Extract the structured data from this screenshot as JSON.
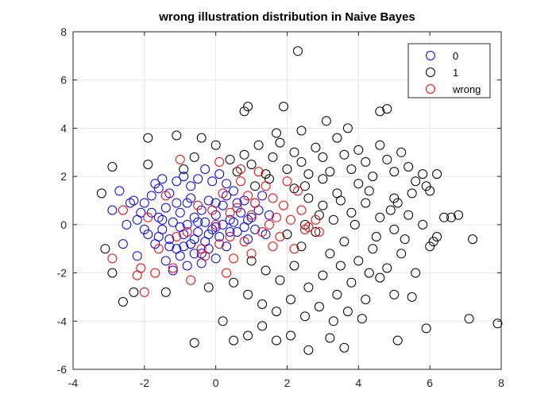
{
  "chart_data": {
    "type": "scatter",
    "title": "wrong illustration distribution in Naive Bayes",
    "xlabel": "",
    "ylabel": "",
    "xlim": [
      -4,
      8
    ],
    "ylim": [
      -6,
      8
    ],
    "xticks": [
      "-4",
      "-2",
      "0",
      "2",
      "4",
      "6",
      "8"
    ],
    "yticks": [
      "-6",
      "-4",
      "-2",
      "0",
      "2",
      "4",
      "6",
      "8"
    ],
    "grid": true,
    "legend_position": "top-right",
    "marker": "circle-open",
    "series": [
      {
        "name": "0",
        "color": "#0000ff",
        "points": [
          [
            -2.7,
            1.4
          ],
          [
            -2.3,
            1.0
          ],
          [
            -2.2,
            0.2
          ],
          [
            -2.0,
            0.9
          ],
          [
            -1.8,
            1.2
          ],
          [
            -1.6,
            1.5
          ],
          [
            -1.5,
            1.9
          ],
          [
            -1.3,
            1.3
          ],
          [
            -1.1,
            1.8
          ],
          [
            -0.9,
            2.0
          ],
          [
            -0.7,
            1.6
          ],
          [
            -0.5,
            1.9
          ],
          [
            -0.3,
            2.3
          ],
          [
            -0.1,
            1.8
          ],
          [
            0.1,
            2.1
          ],
          [
            0.3,
            1.7
          ],
          [
            -1.8,
            0.5
          ],
          [
            -1.6,
            0.3
          ],
          [
            -1.4,
            0.7
          ],
          [
            -1.2,
            0.1
          ],
          [
            -1.0,
            0.5
          ],
          [
            -0.8,
            0.9
          ],
          [
            -0.6,
            0.3
          ],
          [
            -0.4,
            0.6
          ],
          [
            -0.2,
            1.0
          ],
          [
            0.0,
            0.4
          ],
          [
            0.2,
            0.8
          ],
          [
            0.4,
            0.2
          ],
          [
            -1.9,
            -0.4
          ],
          [
            -1.7,
            -0.8
          ],
          [
            -1.5,
            -0.2
          ],
          [
            -1.3,
            -0.6
          ],
          [
            -1.1,
            -1.0
          ],
          [
            -0.9,
            -0.4
          ],
          [
            -0.7,
            -0.8
          ],
          [
            -0.5,
            -0.3
          ],
          [
            -0.3,
            -0.7
          ],
          [
            -0.1,
            -0.2
          ],
          [
            0.1,
            -0.5
          ],
          [
            0.3,
            -0.9
          ],
          [
            -1.4,
            -1.5
          ],
          [
            -1.2,
            -1.9
          ],
          [
            -1.0,
            -1.3
          ],
          [
            -0.8,
            -1.7
          ],
          [
            -0.6,
            -1.2
          ],
          [
            -0.4,
            -1.6
          ],
          [
            -0.2,
            -1.0
          ],
          [
            0.0,
            -1.4
          ],
          [
            -2.6,
            -0.8
          ],
          [
            -2.2,
            -1.3
          ],
          [
            -2.9,
            0.6
          ],
          [
            -2.5,
            0.0
          ],
          [
            -2.1,
            0.5
          ],
          [
            -1.6,
            -0.5
          ],
          [
            -1.0,
            -0.1
          ],
          [
            -0.5,
            0.1
          ],
          [
            0.0,
            -0.1
          ],
          [
            0.5,
            0.1
          ],
          [
            0.6,
            -0.3
          ],
          [
            0.7,
            0.5
          ],
          [
            0.8,
            1.0
          ],
          [
            0.9,
            -0.6
          ],
          [
            1.0,
            0.3
          ],
          [
            1.1,
            -0.2
          ],
          [
            1.2,
            0.6
          ],
          [
            1.3,
            1.2
          ],
          [
            1.4,
            -0.4
          ],
          [
            0.5,
            1.4
          ],
          [
            -0.7,
            1.1
          ],
          [
            -1.7,
            1.7
          ],
          [
            -0.2,
            -0.4
          ],
          [
            0.4,
            -0.3
          ],
          [
            -0.9,
            -0.9
          ],
          [
            0.2,
            0.0
          ],
          [
            -0.4,
            -1.2
          ],
          [
            0.6,
            0.9
          ],
          [
            -1.3,
            -0.9
          ],
          [
            -0.6,
            -0.6
          ],
          [
            0.9,
            0.2
          ],
          [
            -2.0,
            -0.2
          ],
          [
            -1.5,
            0.2
          ],
          [
            0.3,
            1.2
          ],
          [
            -0.8,
            0.0
          ],
          [
            1.1,
            0.9
          ],
          [
            0.0,
            0.9
          ],
          [
            -0.3,
            0.1
          ],
          [
            -1.1,
            0.9
          ],
          [
            0.8,
            -0.1
          ],
          [
            -2.4,
            0.9
          ],
          [
            1.5,
            0.4
          ]
        ]
      },
      {
        "name": "1",
        "color": "#000000",
        "points": [
          [
            -3.2,
            1.3
          ],
          [
            -2.9,
            2.4
          ],
          [
            -3.1,
            -1.0
          ],
          [
            -2.9,
            -2.0
          ],
          [
            -2.6,
            -3.2
          ],
          [
            -2.3,
            -2.8
          ],
          [
            -1.9,
            3.6
          ],
          [
            -1.9,
            2.5
          ],
          [
            -1.4,
            -2.8
          ],
          [
            -1.1,
            3.7
          ],
          [
            -0.9,
            2.3
          ],
          [
            -0.6,
            2.8
          ],
          [
            -0.4,
            3.6
          ],
          [
            -0.2,
            -2.6
          ],
          [
            0.0,
            3.3
          ],
          [
            0.4,
            2.7
          ],
          [
            0.6,
            2.2
          ],
          [
            0.8,
            2.9
          ],
          [
            1.0,
            2.5
          ],
          [
            1.2,
            3.3
          ],
          [
            1.4,
            2.1
          ],
          [
            1.6,
            2.8
          ],
          [
            1.8,
            3.4
          ],
          [
            2.0,
            2.3
          ],
          [
            2.2,
            3.0
          ],
          [
            2.4,
            2.6
          ],
          [
            2.6,
            2.1
          ],
          [
            2.8,
            3.2
          ],
          [
            3.0,
            2.8
          ],
          [
            3.2,
            2.2
          ],
          [
            3.4,
            3.6
          ],
          [
            3.6,
            2.9
          ],
          [
            3.8,
            2.3
          ],
          [
            4.0,
            3.1
          ],
          [
            4.2,
            2.6
          ],
          [
            4.4,
            2.0
          ],
          [
            4.6,
            3.3
          ],
          [
            4.8,
            2.7
          ],
          [
            5.0,
            2.2
          ],
          [
            5.2,
            3.0
          ],
          [
            5.4,
            2.4
          ],
          [
            5.6,
            1.8
          ],
          [
            5.8,
            2.1
          ],
          [
            6.2,
            2.1
          ],
          [
            2.3,
            7.2
          ],
          [
            0.9,
            4.9
          ],
          [
            0.8,
            4.7
          ],
          [
            1.9,
            4.9
          ],
          [
            3.1,
            4.3
          ],
          [
            4.6,
            4.7
          ],
          [
            4.8,
            4.8
          ],
          [
            2.4,
            3.9
          ],
          [
            3.7,
            4.0
          ],
          [
            1.7,
            3.8
          ],
          [
            2.2,
            1.5
          ],
          [
            2.6,
            1.1
          ],
          [
            3.0,
            0.8
          ],
          [
            3.4,
            1.3
          ],
          [
            3.8,
            0.5
          ],
          [
            4.2,
            0.9
          ],
          [
            4.6,
            0.3
          ],
          [
            5.0,
            -0.2
          ],
          [
            5.4,
            0.4
          ],
          [
            5.8,
            0.0
          ],
          [
            6.2,
            -0.5
          ],
          [
            6.6,
            0.3
          ],
          [
            7.2,
            -0.6
          ],
          [
            2.0,
            -0.4
          ],
          [
            2.4,
            -0.9
          ],
          [
            2.8,
            -0.3
          ],
          [
            3.2,
            -1.2
          ],
          [
            3.6,
            -0.7
          ],
          [
            4.0,
            -1.5
          ],
          [
            4.4,
            -1.0
          ],
          [
            4.8,
            -1.8
          ],
          [
            5.2,
            -1.2
          ],
          [
            5.6,
            -2.0
          ],
          [
            6.0,
            -0.9
          ],
          [
            1.0,
            -1.5
          ],
          [
            1.4,
            -1.9
          ],
          [
            1.8,
            -2.3
          ],
          [
            2.2,
            -1.7
          ],
          [
            2.6,
            -2.6
          ],
          [
            3.0,
            -2.1
          ],
          [
            3.4,
            -2.9
          ],
          [
            3.8,
            -2.4
          ],
          [
            4.2,
            -3.1
          ],
          [
            4.6,
            -2.2
          ],
          [
            5.0,
            -2.9
          ],
          [
            5.5,
            -3.0
          ],
          [
            0.5,
            -2.4
          ],
          [
            0.9,
            -2.9
          ],
          [
            1.3,
            -3.3
          ],
          [
            1.7,
            -3.6
          ],
          [
            2.1,
            -3.1
          ],
          [
            2.5,
            -3.8
          ],
          [
            2.9,
            -3.4
          ],
          [
            3.3,
            -4.0
          ],
          [
            3.7,
            -3.6
          ],
          [
            4.1,
            -3.9
          ],
          [
            0.2,
            -4.0
          ],
          [
            -0.6,
            -4.9
          ],
          [
            0.5,
            -4.8
          ],
          [
            0.9,
            -4.6
          ],
          [
            1.3,
            -4.2
          ],
          [
            1.7,
            -4.8
          ],
          [
            2.1,
            -4.6
          ],
          [
            2.6,
            -5.2
          ],
          [
            3.2,
            -4.7
          ],
          [
            3.6,
            -5.1
          ],
          [
            5.1,
            -4.8
          ],
          [
            5.9,
            -4.3
          ],
          [
            7.1,
            -3.9
          ],
          [
            7.9,
            -4.1
          ],
          [
            6.8,
            0.4
          ],
          [
            6.4,
            0.3
          ],
          [
            5.9,
            1.6
          ],
          [
            6.0,
            1.4
          ],
          [
            5.5,
            1.3
          ],
          [
            5.0,
            1.1
          ],
          [
            4.0,
            1.7
          ],
          [
            3.5,
            1.0
          ],
          [
            3.0,
            1.9
          ],
          [
            2.5,
            1.6
          ],
          [
            1.5,
            1.9
          ],
          [
            1.1,
            1.6
          ],
          [
            4.3,
            1.4
          ],
          [
            4.9,
            0.6
          ],
          [
            3.9,
            0.0
          ],
          [
            3.3,
            0.2
          ],
          [
            2.9,
            0.4
          ],
          [
            2.5,
            0.0
          ],
          [
            4.5,
            -0.5
          ],
          [
            5.1,
            0.9
          ],
          [
            6.1,
            -0.7
          ],
          [
            5.3,
            -0.6
          ],
          [
            3.5,
            -1.7
          ],
          [
            4.3,
            -2.0
          ]
        ]
      },
      {
        "name": "wrong",
        "color": "#ff0000",
        "points": [
          [
            -2.9,
            -1.4
          ],
          [
            -2.6,
            0.6
          ],
          [
            -2.2,
            -2.1
          ],
          [
            -2.1,
            -1.8
          ],
          [
            -2.0,
            -2.8
          ],
          [
            -1.9,
            0.3
          ],
          [
            -1.6,
            -1.0
          ],
          [
            -1.4,
            1.2
          ],
          [
            -1.2,
            -1.8
          ],
          [
            -1.0,
            2.7
          ],
          [
            -0.8,
            -0.3
          ],
          [
            -0.7,
            -2.3
          ],
          [
            -0.5,
            0.8
          ],
          [
            -0.3,
            -1.3
          ],
          [
            -0.1,
            0.6
          ],
          [
            0.1,
            -0.8
          ],
          [
            0.2,
            1.3
          ],
          [
            0.3,
            -2.0
          ],
          [
            0.4,
            0.5
          ],
          [
            0.5,
            -1.4
          ],
          [
            0.6,
            0.7
          ],
          [
            0.7,
            1.8
          ],
          [
            0.8,
            -0.7
          ],
          [
            0.9,
            1.2
          ],
          [
            1.0,
            -1.2
          ],
          [
            1.1,
            0.9
          ],
          [
            1.2,
            2.2
          ],
          [
            1.3,
            -0.3
          ],
          [
            1.4,
            1.6
          ],
          [
            1.5,
            0.0
          ],
          [
            1.6,
            1.1
          ],
          [
            1.7,
            0.3
          ],
          [
            1.8,
            -0.5
          ],
          [
            1.9,
            0.8
          ],
          [
            2.0,
            1.8
          ],
          [
            2.1,
            0.2
          ],
          [
            2.2,
            -1.0
          ],
          [
            2.3,
            1.4
          ],
          [
            2.4,
            0.6
          ],
          [
            2.5,
            -0.2
          ],
          [
            2.6,
            -0.1
          ],
          [
            2.8,
            0.2
          ],
          [
            2.9,
            -0.3
          ],
          [
            -1.1,
            -0.5
          ],
          [
            -0.4,
            -1.0
          ],
          [
            0.0,
            0.0
          ],
          [
            0.4,
            -0.5
          ],
          [
            1.0,
            0.4
          ],
          [
            -1.7,
            -2.0
          ],
          [
            0.1,
            2.6
          ],
          [
            0.7,
            2.3
          ],
          [
            1.6,
            -0.9
          ]
        ]
      }
    ]
  }
}
